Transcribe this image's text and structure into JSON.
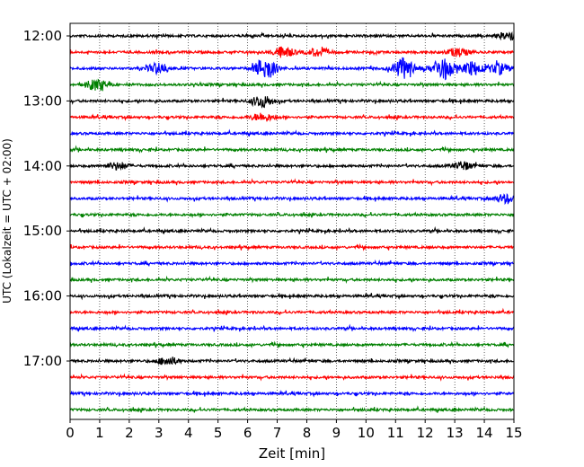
{
  "chart_data": {
    "type": "line",
    "subtype": "helicorder-seismogram",
    "xlabel": "Zeit  [min]",
    "ylabel": "UTC (Lokalzeit = UTC + 02:00)",
    "xlim": [
      0,
      15
    ],
    "x_ticks": [
      "0",
      "1",
      "2",
      "3",
      "4",
      "5",
      "6",
      "7",
      "8",
      "9",
      "10",
      "11",
      "12",
      "13",
      "14",
      "15"
    ],
    "y_tick_labels": [
      "12:00",
      "13:00",
      "14:00",
      "15:00",
      "16:00",
      "17:00"
    ],
    "grid": "vertical dotted at each minute",
    "trace_colors": [
      "#000000",
      "#ff0000",
      "#0000ff",
      "#008000"
    ],
    "traces": [
      {
        "start": "12:00",
        "color": "#000000",
        "events": [
          {
            "t": 14.85,
            "amp": 0.35
          }
        ]
      },
      {
        "start": "12:15",
        "color": "#ff0000",
        "events": [
          {
            "t": 7.2,
            "amp": 0.45
          },
          {
            "t": 8.4,
            "amp": 0.35
          },
          {
            "t": 13.1,
            "amp": 0.35
          }
        ]
      },
      {
        "start": "12:30",
        "color": "#0000ff",
        "events": [
          {
            "t": 3.0,
            "amp": 0.45
          },
          {
            "t": 6.6,
            "amp": 0.9
          },
          {
            "t": 11.3,
            "amp": 0.9
          },
          {
            "t": 12.6,
            "amp": 0.95
          },
          {
            "t": 13.6,
            "amp": 0.55
          },
          {
            "t": 14.5,
            "amp": 0.45
          }
        ]
      },
      {
        "start": "12:45",
        "color": "#008000",
        "events": [
          {
            "t": 0.9,
            "amp": 0.45
          }
        ]
      },
      {
        "start": "13:00",
        "color": "#000000",
        "events": [
          {
            "t": 6.5,
            "amp": 0.5
          }
        ]
      },
      {
        "start": "13:15",
        "color": "#ff0000",
        "events": [
          {
            "t": 6.5,
            "amp": 0.35
          }
        ]
      },
      {
        "start": "13:30",
        "color": "#0000ff",
        "events": []
      },
      {
        "start": "13:45",
        "color": "#008000",
        "events": []
      },
      {
        "start": "14:00",
        "color": "#000000",
        "events": [
          {
            "t": 1.6,
            "amp": 0.3
          },
          {
            "t": 13.3,
            "amp": 0.3
          }
        ]
      },
      {
        "start": "14:15",
        "color": "#ff0000",
        "events": []
      },
      {
        "start": "14:30",
        "color": "#0000ff",
        "events": [
          {
            "t": 14.7,
            "amp": 0.35
          }
        ]
      },
      {
        "start": "14:45",
        "color": "#008000",
        "events": []
      },
      {
        "start": "15:00",
        "color": "#000000",
        "events": []
      },
      {
        "start": "15:15",
        "color": "#ff0000",
        "events": []
      },
      {
        "start": "15:30",
        "color": "#0000ff",
        "events": []
      },
      {
        "start": "15:45",
        "color": "#008000",
        "events": []
      },
      {
        "start": "16:00",
        "color": "#000000",
        "events": []
      },
      {
        "start": "16:15",
        "color": "#ff0000",
        "events": []
      },
      {
        "start": "16:30",
        "color": "#0000ff",
        "events": []
      },
      {
        "start": "16:45",
        "color": "#008000",
        "events": []
      },
      {
        "start": "17:00",
        "color": "#000000",
        "events": [
          {
            "t": 3.3,
            "amp": 0.35
          }
        ]
      },
      {
        "start": "17:15",
        "color": "#ff0000",
        "events": []
      },
      {
        "start": "17:30",
        "color": "#0000ff",
        "events": []
      },
      {
        "start": "17:45",
        "color": "#008000",
        "events": []
      }
    ]
  }
}
